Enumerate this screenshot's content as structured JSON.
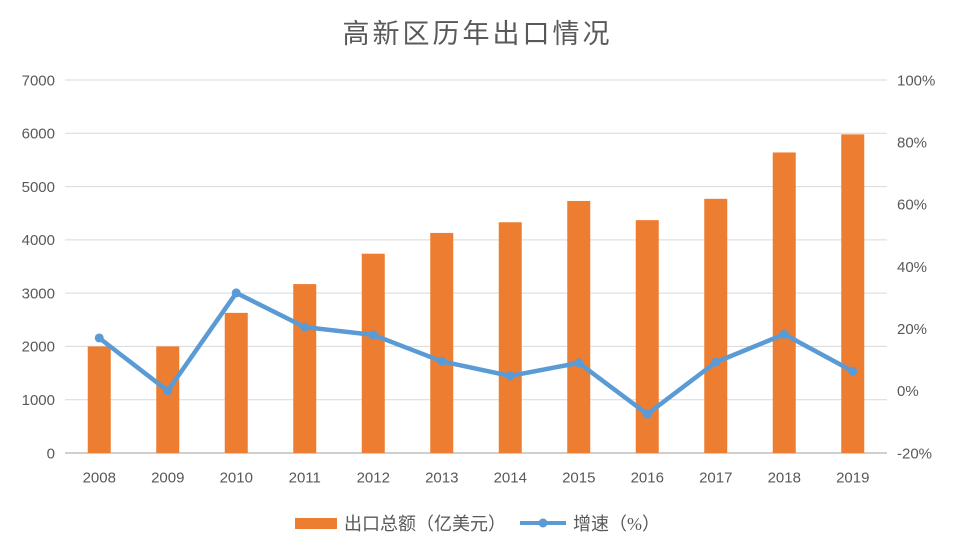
{
  "chart_data": {
    "type": "bar+line combo",
    "title": "高新区历年出口情况",
    "categories": [
      "2008",
      "2009",
      "2010",
      "2011",
      "2012",
      "2013",
      "2014",
      "2015",
      "2016",
      "2017",
      "2018",
      "2019"
    ],
    "series": [
      {
        "name": "出口总额（亿美元）",
        "type": "bar",
        "axis": "left",
        "color": "#ED7D31",
        "values": [
          2000,
          2000,
          2630,
          3170,
          3740,
          4130,
          4330,
          4730,
          4370,
          4770,
          5640,
          5980
        ]
      },
      {
        "name": "增速（%）",
        "type": "line",
        "axis": "right",
        "color": "#5B9BD5",
        "values": [
          17,
          0,
          31.5,
          20.5,
          18,
          9.5,
          4.8,
          9,
          -7.5,
          9.2,
          18.2,
          6.3
        ]
      }
    ],
    "left_axis": {
      "min": 0,
      "max": 7000,
      "tick_values": [
        0,
        1000,
        2000,
        3000,
        4000,
        5000,
        6000,
        7000
      ],
      "tick_labels": [
        "0",
        "1000",
        "2000",
        "3000",
        "4000",
        "5000",
        "6000",
        "7000"
      ]
    },
    "right_axis": {
      "min": -20,
      "max": 100,
      "tick_values": [
        -20,
        0,
        20,
        40,
        60,
        80,
        100
      ],
      "tick_labels": [
        "-20%",
        "0%",
        "20%",
        "40%",
        "60%",
        "80%",
        "100%"
      ]
    },
    "grid": true,
    "legend_position": "bottom"
  },
  "colors": {
    "background": "#FFFFFF",
    "gridline": "#D9D9D9",
    "axis_line": "#BFBFBF",
    "text": "#595959",
    "bar": "#ED7D31",
    "line": "#5B9BD5"
  }
}
